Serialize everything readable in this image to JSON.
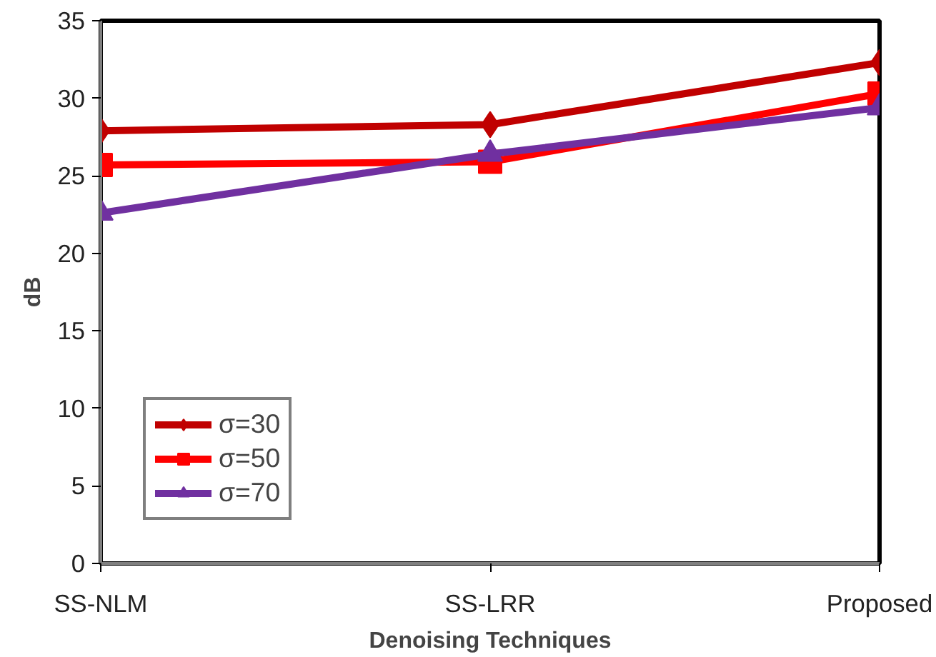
{
  "chart_data": {
    "type": "line",
    "xlabel": "Denoising Techniques",
    "ylabel": "dB",
    "categories": [
      "SS-NLM",
      "SS-LRR",
      "Proposed"
    ],
    "series": [
      {
        "name": "σ=30",
        "color": "#c00000",
        "marker": "diamond",
        "values": [
          27.9,
          28.3,
          32.3
        ]
      },
      {
        "name": "σ=50",
        "color": "#ff0000",
        "marker": "square",
        "values": [
          25.7,
          25.9,
          30.3
        ]
      },
      {
        "name": "σ=70",
        "color": "#7030a0",
        "marker": "triangle",
        "values": [
          22.6,
          26.4,
          29.4
        ]
      }
    ],
    "ylim": [
      0,
      35
    ],
    "yticks": [
      0,
      5,
      10,
      15,
      20,
      25,
      30,
      35
    ],
    "grid": false,
    "legend": "bottom left",
    "line_style": "solid"
  }
}
